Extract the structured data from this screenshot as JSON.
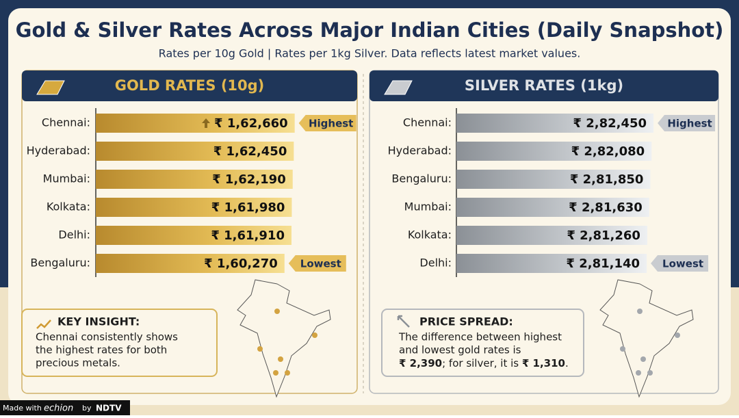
{
  "header": {
    "title": "Gold & Silver Rates Across Major Indian Cities (Daily Snapshot)",
    "subtitle": "Rates per 10g Gold | Rates per 1kg Silver. Data reflects latest market values."
  },
  "chart_data": [
    {
      "type": "bar",
      "orientation": "horizontal",
      "title": "GOLD RATES (10g)",
      "color": "gold",
      "categories": [
        "Chennai:",
        "Hyderabad:",
        "Mumbai:",
        "Kolkata:",
        "Delhi:",
        "Bengaluru:"
      ],
      "values": [
        162660,
        162450,
        162190,
        161980,
        161910,
        160270
      ],
      "value_labels": [
        "₹ 1,62,660",
        "₹ 1,62,450",
        "₹ 1,62,190",
        "₹ 1,61,980",
        "₹ 1,61,910",
        "₹ 1,60,270"
      ],
      "xlim": [
        116000,
        177000
      ],
      "annotations": [
        {
          "category": "Chennai:",
          "text": "Highest"
        },
        {
          "category": "Bengaluru:",
          "text": "Lowest"
        }
      ]
    },
    {
      "type": "bar",
      "orientation": "horizontal",
      "title": "SILVER RATES (1kg)",
      "color": "silver",
      "categories": [
        "Chennai:",
        "Hyderabad:",
        "Bengaluru:",
        "Mumbai:",
        "Kolkata:",
        "Delhi:"
      ],
      "values": [
        282450,
        282080,
        281850,
        281630,
        281260,
        281140
      ],
      "value_labels": [
        "₹ 2,82,450",
        "₹ 2,82,080",
        "₹ 2,81,850",
        "₹ 2,81,630",
        "₹ 2,81,260",
        "₹ 2,81,140"
      ],
      "xlim": [
        244700,
        294500
      ],
      "annotations": [
        {
          "category": "Chennai:",
          "text": "Highest"
        },
        {
          "category": "Delhi:",
          "text": "Lowest"
        }
      ]
    }
  ],
  "insights": [
    {
      "heading": "KEY INSIGHT:",
      "lines": [
        "Chennai consistently shows",
        "the highest rates for both",
        "precious metals."
      ]
    },
    {
      "heading": "PRICE SPREAD:",
      "lines": [
        "The difference between highest",
        "and lowest gold rates is"
      ],
      "last_line": [
        {
          "text": "₹ 2,390",
          "bold": true
        },
        {
          "text": "; for silver, it is ",
          "bold": false
        },
        {
          "text": "₹ 1,310",
          "bold": true
        },
        {
          "text": ".",
          "bold": false
        }
      ]
    }
  ],
  "footer": {
    "made_with": "Made with",
    "brand": "echion",
    "by": "by",
    "partner": "NDTV"
  }
}
